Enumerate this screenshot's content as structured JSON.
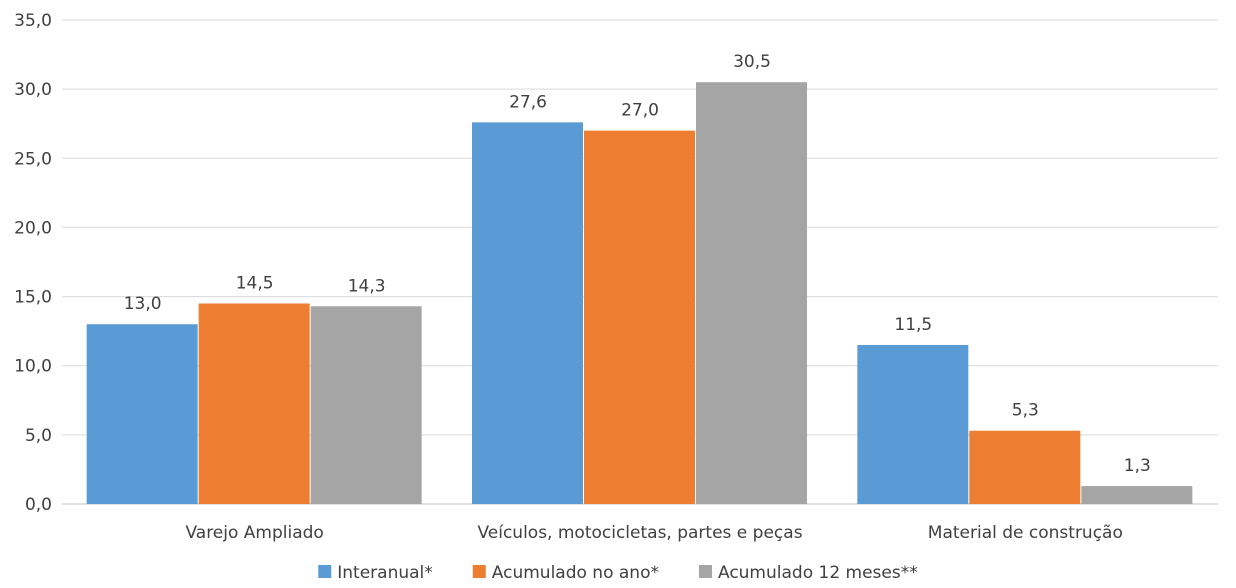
{
  "chart_data": {
    "type": "bar",
    "categories": [
      "Varejo Ampliado",
      "Veículos, motocicletas, partes e peças",
      "Material de construção"
    ],
    "series": [
      {
        "name": "Interanual*",
        "values": [
          13.0,
          27.6,
          11.5
        ],
        "labels": [
          "13,0",
          "27,6",
          "11,5"
        ],
        "color": "#5B9BD5"
      },
      {
        "name": "Acumulado no ano*",
        "values": [
          14.5,
          27.0,
          5.3
        ],
        "labels": [
          "14,5",
          "27,0",
          "5,3"
        ],
        "color": "#ED7D31"
      },
      {
        "name": "Acumulado 12 meses**",
        "values": [
          14.3,
          30.5,
          1.3
        ],
        "labels": [
          "14,3",
          "30,5",
          "1,3"
        ],
        "color": "#A5A5A5"
      }
    ],
    "ylim": [
      0,
      35
    ],
    "yticks": [
      "0,0",
      "5,0",
      "10,0",
      "15,0",
      "20,0",
      "25,0",
      "30,0",
      "35,0"
    ],
    "grid": true,
    "legend_position": "bottom",
    "title": "",
    "xlabel": "",
    "ylabel": ""
  }
}
